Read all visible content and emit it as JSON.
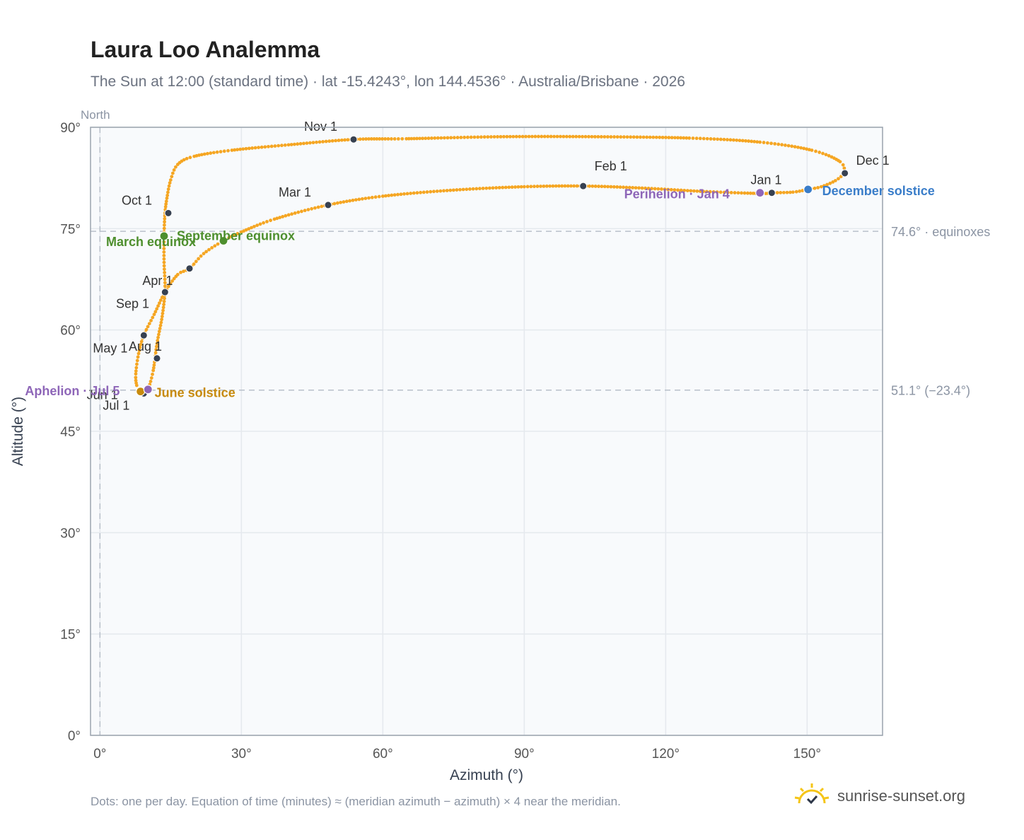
{
  "title": "Laura Loo Analemma",
  "subtitle": "The Sun at 12:00 (standard time) · lat -15.4243°, lon 144.4536° · Australia/Brisbane · 2026",
  "footnote": "Dots: one per day. Equation of time (minutes) ≈ (meridian azimuth − azimuth) × 4 near the meridian.",
  "brand": {
    "name": "sunrise-sunset.org",
    "icon": "sun-logo-icon"
  },
  "colors": {
    "curve": "#f5a623",
    "month_marker": "#374151",
    "equinox": "#4e8f2e",
    "june_solstice": "#c78a0c",
    "december_solstice": "#3a7dc9",
    "apsis": "#8e66b8",
    "grid": "#e5e9ee",
    "plot_bg": "#f8fafc",
    "axis": "#9aa3ad"
  },
  "chart_data": {
    "type": "scatter",
    "xlabel": "Azimuth (°)",
    "ylabel": "Altitude (°)",
    "xlim": [
      -2,
      166
    ],
    "ylim": [
      0,
      90
    ],
    "xticks": [
      0,
      30,
      60,
      90,
      120,
      150
    ],
    "yticks": [
      0,
      15,
      30,
      45,
      60,
      75,
      90
    ],
    "tick_suffix": "°",
    "grid": true,
    "meridian_label": "North",
    "meridian_azimuth": 0,
    "reference_lines": [
      {
        "altitude": 74.6,
        "label": "74.6° · equinoxes"
      },
      {
        "altitude": 51.1,
        "label": "51.1° (−23.4°)"
      }
    ],
    "path_control_points": [
      [
        158,
        83.2
      ],
      [
        157,
        84.9
      ],
      [
        151,
        86.6
      ],
      [
        140,
        87.8
      ],
      [
        125,
        88.4
      ],
      [
        105,
        88.6
      ],
      [
        85,
        88.6
      ],
      [
        65,
        88.3
      ],
      [
        53.8,
        88.2
      ],
      [
        40,
        87.4
      ],
      [
        28,
        86.6
      ],
      [
        20,
        85.7
      ],
      [
        16.5,
        84.5
      ],
      [
        15,
        82.2
      ],
      [
        14.2,
        79.5
      ],
      [
        13.8,
        77.3
      ],
      [
        13.6,
        74
      ],
      [
        13.6,
        70
      ],
      [
        13.8,
        66
      ],
      [
        13.2,
        62
      ],
      [
        12.1,
        58
      ],
      [
        11.3,
        54
      ],
      [
        10.2,
        51.2
      ],
      [
        9.3,
        50.6
      ],
      [
        8.6,
        50.8
      ],
      [
        7.8,
        51.8
      ],
      [
        7.6,
        53.5
      ],
      [
        8.2,
        56.5
      ],
      [
        9.3,
        59.2
      ],
      [
        11.5,
        62.3
      ],
      [
        13.8,
        65.6
      ],
      [
        16.5,
        68.2
      ],
      [
        19,
        69.1
      ],
      [
        22,
        71.3
      ],
      [
        26.2,
        73.2
      ],
      [
        30,
        74.5
      ],
      [
        37,
        76.4
      ],
      [
        48.4,
        78.5
      ],
      [
        60,
        79.8
      ],
      [
        75,
        80.7
      ],
      [
        90,
        81.2
      ],
      [
        102.5,
        81.3
      ],
      [
        115,
        81
      ],
      [
        128,
        80.5
      ],
      [
        140,
        80.2
      ],
      [
        142.5,
        80.3
      ],
      [
        147,
        80.4
      ],
      [
        150.2,
        80.8
      ],
      [
        153,
        81.2
      ],
      [
        156,
        82.1
      ],
      [
        158,
        83.2
      ]
    ],
    "month_markers": [
      {
        "label": "Jan 1",
        "azimuth": 142.5,
        "altitude": 80.3
      },
      {
        "label": "Feb 1",
        "azimuth": 102.5,
        "altitude": 81.3
      },
      {
        "label": "Mar 1",
        "azimuth": 48.4,
        "altitude": 78.5
      },
      {
        "label": "Apr 1",
        "azimuth": 13.8,
        "altitude": 65.6
      },
      {
        "label": "May 1",
        "azimuth": 9.3,
        "altitude": 59.2
      },
      {
        "label": "Jun 1",
        "azimuth": 8.6,
        "altitude": 50.8
      },
      {
        "label": "Jul 1",
        "azimuth": 9.3,
        "altitude": 50.6
      },
      {
        "label": "Aug 1",
        "azimuth": 12.1,
        "altitude": 55.8
      },
      {
        "label": "Sep 1",
        "azimuth": 19,
        "altitude": 69.1
      },
      {
        "label": "Oct 1",
        "azimuth": 14.5,
        "altitude": 77.3
      },
      {
        "label": "Nov 1",
        "azimuth": 53.8,
        "altitude": 88.2
      },
      {
        "label": "Dec 1",
        "azimuth": 158,
        "altitude": 83.2
      }
    ],
    "events": [
      {
        "label": "March equinox",
        "azimuth": 13.6,
        "altitude": 73.9,
        "kind": "equinox"
      },
      {
        "label": "September equinox",
        "azimuth": 26.2,
        "altitude": 73.2,
        "kind": "equinox"
      },
      {
        "label": "June solstice",
        "azimuth": 8.6,
        "altitude": 50.9,
        "kind": "june_solstice"
      },
      {
        "label": "December solstice",
        "azimuth": 150.2,
        "altitude": 80.8,
        "kind": "december_solstice"
      },
      {
        "label": "Perihelion · Jan 4",
        "azimuth": 140,
        "altitude": 80.3,
        "kind": "apsis"
      },
      {
        "label": "Aphelion · Jul 5",
        "azimuth": 10.2,
        "altitude": 51.2,
        "kind": "apsis"
      }
    ]
  }
}
